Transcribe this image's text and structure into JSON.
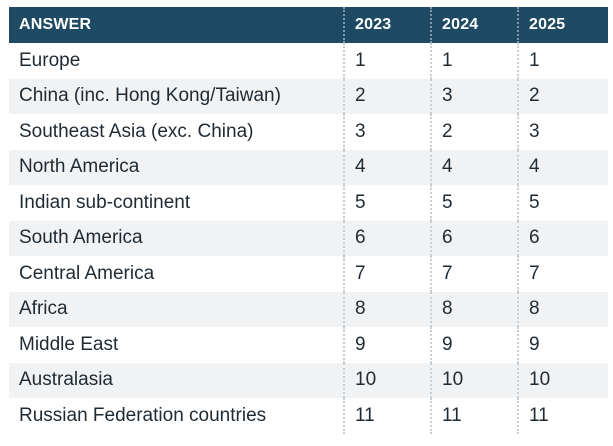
{
  "table": {
    "headers": [
      "ANSWER",
      "2023",
      "2024",
      "2025"
    ],
    "rows": [
      {
        "answer": "Europe",
        "y2023": "1",
        "y2024": "1",
        "y2025": "1"
      },
      {
        "answer": "China (inc. Hong Kong/Taiwan)",
        "y2023": "2",
        "y2024": "3",
        "y2025": "2"
      },
      {
        "answer": "Southeast Asia (exc. China)",
        "y2023": "3",
        "y2024": "2",
        "y2025": "3"
      },
      {
        "answer": "North America",
        "y2023": "4",
        "y2024": "4",
        "y2025": "4"
      },
      {
        "answer": "Indian sub-continent",
        "y2023": "5",
        "y2024": "5",
        "y2025": "5"
      },
      {
        "answer": "South America",
        "y2023": "6",
        "y2024": "6",
        "y2025": "6"
      },
      {
        "answer": "Central America",
        "y2023": "7",
        "y2024": "7",
        "y2025": "7"
      },
      {
        "answer": "Africa",
        "y2023": "8",
        "y2024": "8",
        "y2025": "8"
      },
      {
        "answer": "Middle East",
        "y2023": "9",
        "y2024": "9",
        "y2025": "9"
      },
      {
        "answer": "Australasia",
        "y2023": "10",
        "y2024": "10",
        "y2025": "10"
      },
      {
        "answer": "Russian Federation countries",
        "y2023": "11",
        "y2024": "11",
        "y2025": "11"
      }
    ]
  },
  "colors": {
    "header_bg": "#1f4a63",
    "header_text": "#ffffff",
    "stripe_bg": "#f1f2f3",
    "body_text": "#1f2a33"
  }
}
